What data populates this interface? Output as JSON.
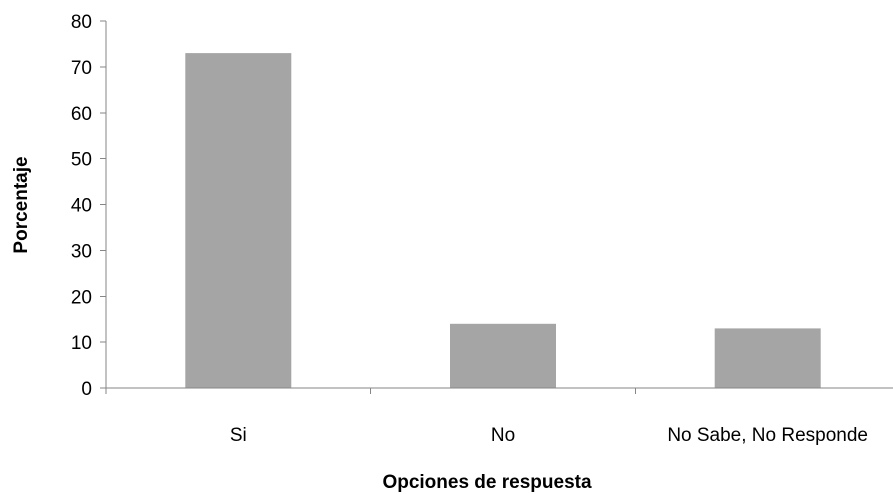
{
  "chart_data": {
    "type": "bar",
    "categories": [
      "Si",
      "No",
      "No Sabe, No Responde"
    ],
    "values": [
      73,
      14,
      13
    ],
    "xlabel": "Opciones de respuesta",
    "ylabel": "Porcentaje",
    "ylim": [
      0,
      80
    ],
    "yticks": [
      0,
      10,
      20,
      30,
      40,
      50,
      60,
      70,
      80
    ],
    "ytick_labels": [
      "0",
      "10",
      "20",
      "30",
      "40",
      "50",
      "60",
      "70",
      "80"
    ],
    "grid": false,
    "legend": "none",
    "bar_color": "#a5a5a5",
    "axis_color": "#868686"
  }
}
